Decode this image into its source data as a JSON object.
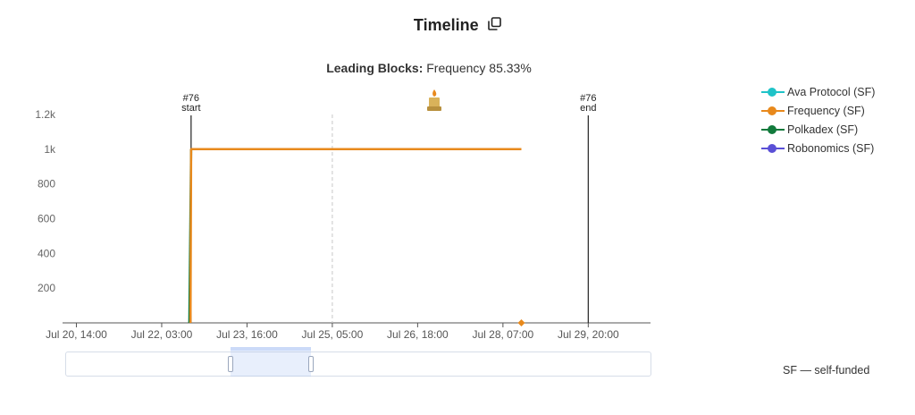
{
  "header": {
    "title": "Timeline",
    "icon": "copy-icon"
  },
  "subtitle": {
    "label": "Leading Blocks:",
    "value": "Frequency 85.33%"
  },
  "legend": [
    {
      "label": "Ava Protocol (SF)",
      "color": "#1fc3c8"
    },
    {
      "label": "Frequency (SF)",
      "color": "#e8891c"
    },
    {
      "label": "Polkadex (SF)",
      "color": "#127a3c"
    },
    {
      "label": "Robonomics (SF)",
      "color": "#5a4fd6"
    }
  ],
  "footnote": "SF — self-funded",
  "chart_data": {
    "type": "line",
    "y_ticks": [
      "200",
      "400",
      "600",
      "800",
      "1k",
      "1.2k"
    ],
    "y_tick_values": [
      200,
      400,
      600,
      800,
      1000,
      1200
    ],
    "ylim": [
      0,
      1200
    ],
    "x_ticks": [
      "Jul 20, 14:00",
      "Jul 22, 03:00",
      "Jul 23, 16:00",
      "Jul 25, 05:00",
      "Jul 26, 18:00",
      "Jul 28, 07:00",
      "Jul 29, 20:00"
    ],
    "x_tick_values": [
      "2024-07-20T14:00",
      "2024-07-22T03:00",
      "2024-07-23T16:00",
      "2024-07-25T05:00",
      "2024-07-26T18:00",
      "2024-07-28T07:00",
      "2024-07-29T20:00"
    ],
    "xlim": [
      "2024-07-20T08:00",
      "2024-07-30T23:00"
    ],
    "series": [
      {
        "name": "Frequency (SF)",
        "color": "#e8891c",
        "points": [
          [
            "2024-07-22T15:30",
            0
          ],
          [
            "2024-07-22T15:45",
            1000
          ],
          [
            "2024-07-28T15:00",
            1000
          ]
        ]
      },
      {
        "name": "Polkadex (SF)",
        "color": "#127a3c",
        "points": [
          [
            "2024-07-22T15:00",
            0
          ],
          [
            "2024-07-22T15:45",
            1000
          ]
        ]
      }
    ],
    "markers": [
      {
        "label_top": "#76",
        "label_bottom": "start",
        "x": "2024-07-22T15:45"
      },
      {
        "label_top": "#76",
        "label_bottom": "end",
        "x": "2024-07-29T20:00"
      }
    ],
    "dashed_line_x": "2024-07-25T05:00",
    "end_point": {
      "x": "2024-07-28T15:00",
      "y": 0
    },
    "grid": false
  }
}
